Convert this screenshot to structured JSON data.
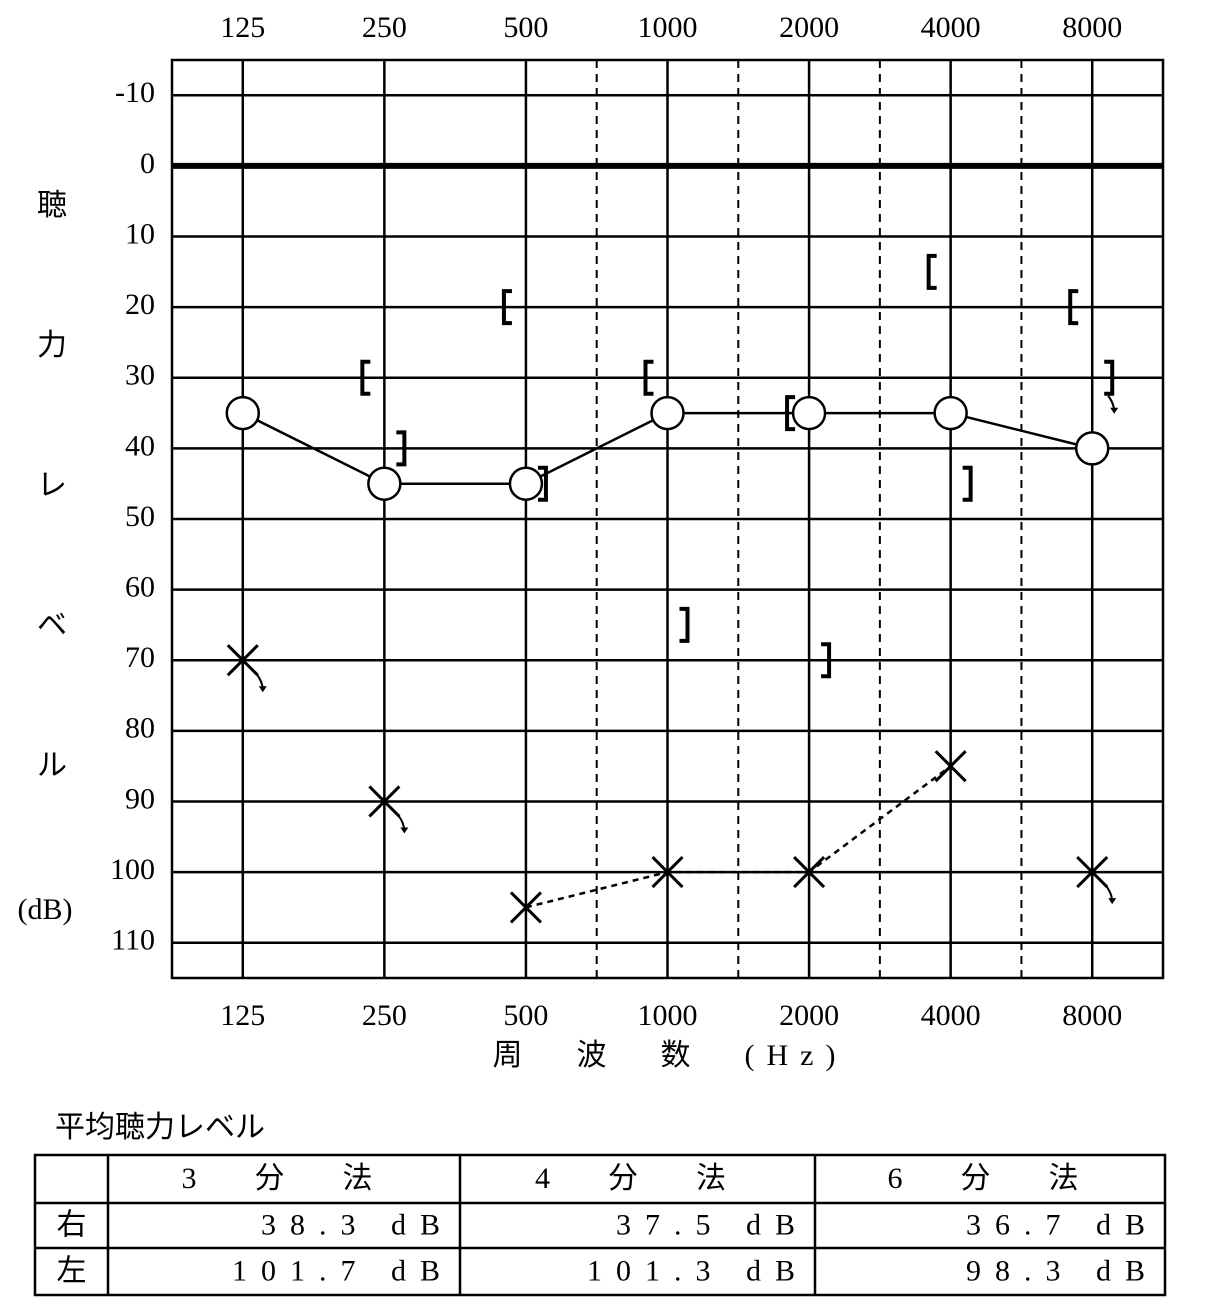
{
  "chart_data": {
    "type": "audiogram",
    "categories": [
      "125",
      "250",
      "500",
      "1000",
      "2000",
      "4000",
      "8000"
    ],
    "ylim": [
      -15,
      115
    ],
    "y_inverted": true,
    "yticks": [
      -10,
      0,
      10,
      20,
      30,
      40,
      50,
      60,
      70,
      80,
      90,
      100,
      110
    ],
    "ylabel": "聴力レベル",
    "yunit": "(dB)",
    "xlabel": "周　波　数　(Hz)",
    "grid": true,
    "color": "#000000",
    "series": [
      {
        "marker": "circle",
        "line": "solid",
        "values": [
          35,
          45,
          45,
          35,
          35,
          35,
          40
        ]
      },
      {
        "marker": "cross",
        "line": "dashed",
        "values": [
          70,
          90,
          105,
          100,
          100,
          85,
          100
        ],
        "no_response": [
          true,
          true,
          false,
          false,
          false,
          false,
          true
        ]
      },
      {
        "marker": "bracket-left",
        "line": "none",
        "values": [
          null,
          30,
          20,
          30,
          35,
          15,
          20
        ]
      },
      {
        "marker": "bracket-right",
        "line": "none",
        "values": [
          null,
          40,
          45,
          65,
          70,
          45,
          30
        ],
        "no_response": [
          false,
          false,
          false,
          false,
          false,
          false,
          true
        ]
      }
    ]
  },
  "table": {
    "title": "平均聴力レベル",
    "headers": [
      "3　分　法",
      "4　分　法",
      "6　分　法"
    ],
    "rows": [
      {
        "label": "右",
        "cells": [
          "38.3 dB",
          "37.5 dB",
          "36.7 dB"
        ]
      },
      {
        "label": "左",
        "cells": [
          "101.7 dB",
          "101.3 dB",
          "98.3 dB"
        ]
      }
    ]
  }
}
